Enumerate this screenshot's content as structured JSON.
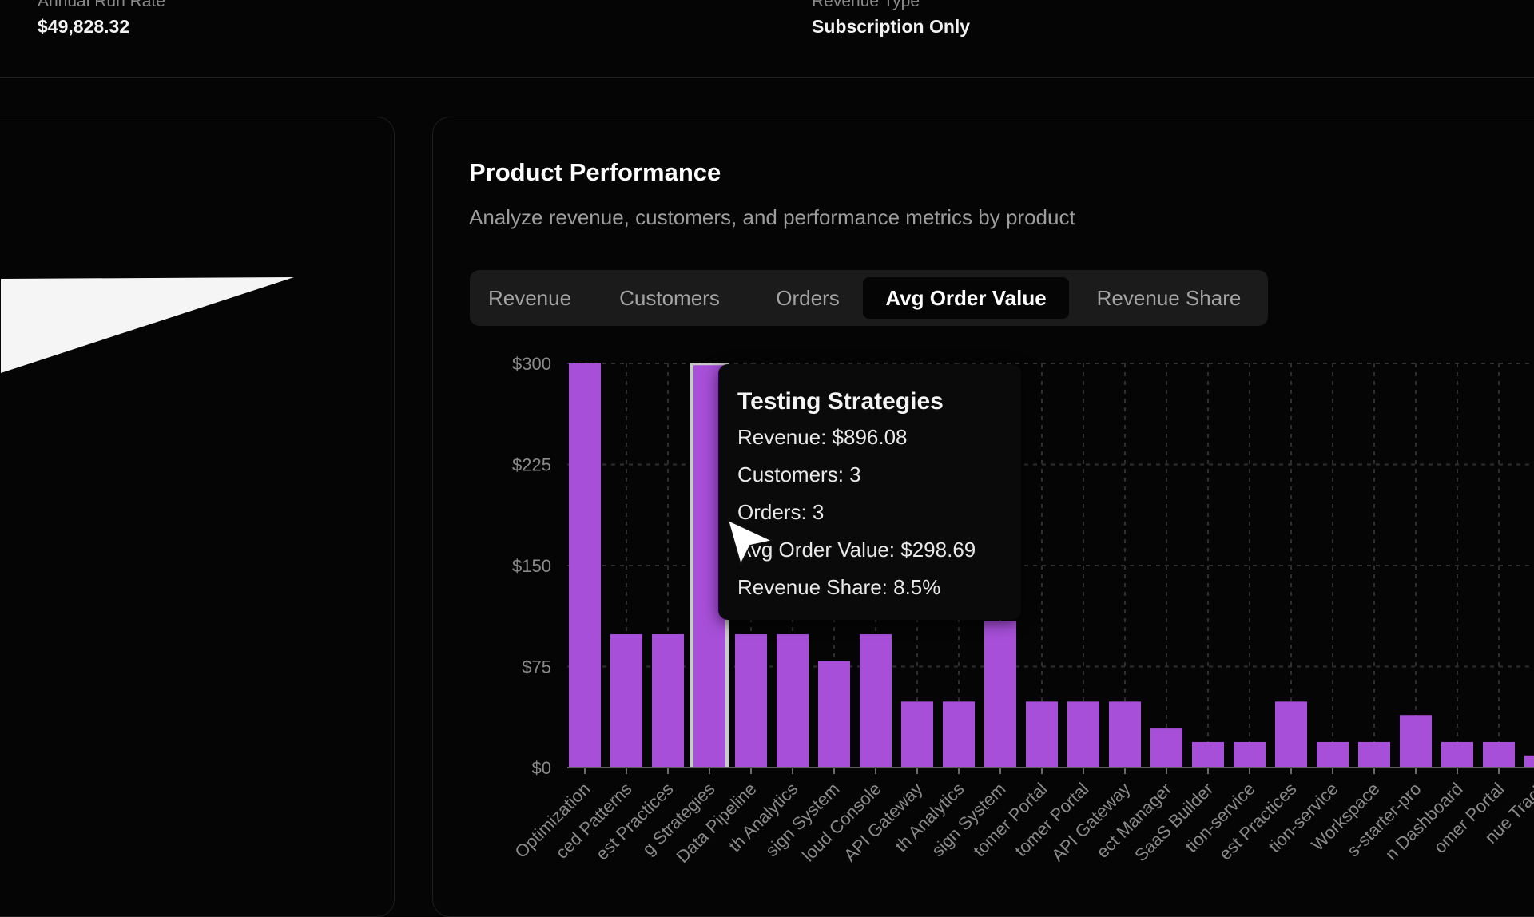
{
  "stats": {
    "annual_run_rate": {
      "label": "Annual Run Rate",
      "value": "$49,828.32"
    },
    "revenue_type": {
      "label": "Revenue Type",
      "value": "Subscription Only"
    }
  },
  "card": {
    "title": "Product Performance",
    "subtitle": "Analyze revenue, customers, and performance metrics by product"
  },
  "tabs": [
    {
      "label": "Revenue",
      "active": false
    },
    {
      "label": "Customers",
      "active": false
    },
    {
      "label": "Orders",
      "active": false
    },
    {
      "label": "Avg Order Value",
      "active": true
    },
    {
      "label": "Revenue Share",
      "active": false
    }
  ],
  "colors": {
    "bar": "#a74fd8",
    "highlight": "#c9c9c9",
    "grid": "#2e2e2e",
    "background": "#050505"
  },
  "tooltip": {
    "title": "Testing Strategies",
    "lines": [
      "Revenue: $896.08",
      "Customers: 3",
      "Orders: 3",
      "Avg Order Value: $298.69",
      "Revenue Share: 8.5%"
    ]
  },
  "chart_data": {
    "type": "bar",
    "title": "",
    "xlabel": "",
    "ylabel": "",
    "ylim": [
      0,
      300
    ],
    "yticks": [
      "$0",
      "$75",
      "$150",
      "$225",
      "$300"
    ],
    "ytick_values": [
      0,
      75,
      150,
      225,
      300
    ],
    "grid": true,
    "highlighted_index": 3,
    "categories": [
      "Optimization",
      "ced Patterns",
      "est Practices",
      "g Strategies",
      "Data Pipeline",
      "th Analytics",
      "sign System",
      "loud Console",
      "API Gateway",
      "th Analytics",
      "sign System",
      "tomer Portal",
      "tomer Portal",
      "API Gateway",
      "ect Manager",
      "SaaS Builder",
      "tion-service",
      "est Practices",
      "tion-service",
      "Workspace",
      "s-starter-pro",
      "n Dashboard",
      "omer Portal",
      "nue Track"
    ],
    "values": [
      300,
      99,
      99,
      298.69,
      99,
      99,
      79,
      99,
      49,
      49,
      109,
      49,
      49,
      49,
      29,
      19,
      19,
      49,
      19,
      19,
      39,
      19,
      19,
      9
    ]
  }
}
